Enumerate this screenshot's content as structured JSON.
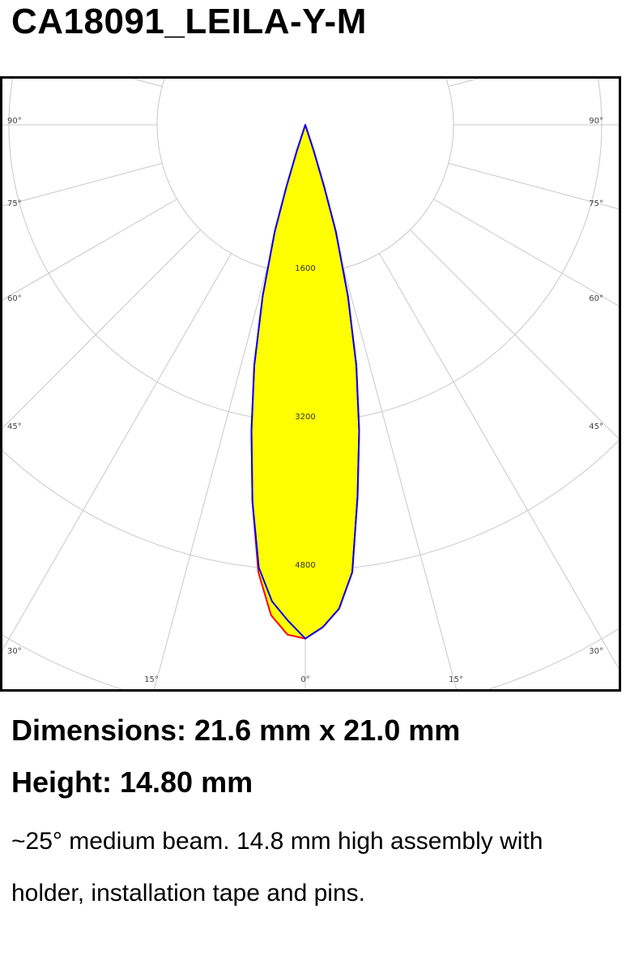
{
  "title": "CA18091_LEILA-Y-M",
  "chart_data": {
    "type": "polar",
    "title": "",
    "rings": [
      1600,
      3200,
      4800,
      6400
    ],
    "ring_labels": [
      "1600",
      "3200",
      "4800"
    ],
    "angle_labels_left": [
      "90°",
      "75°",
      "60°",
      "45°",
      "30°"
    ],
    "angle_labels_right": [
      "90°",
      "75°",
      "60°",
      "45°",
      "30°"
    ],
    "angle_labels_bottom": [
      "15°",
      "0°",
      "15°"
    ],
    "grid": true,
    "fill_color": "#ffff00",
    "series": [
      {
        "color": "#ff0000",
        "angles": [
          -20,
          -18,
          -17,
          -16,
          -14,
          -12,
          -10,
          -8,
          -6,
          -4,
          -2,
          0,
          2,
          4,
          6,
          8,
          10,
          12,
          14,
          16,
          17,
          18,
          20
        ],
        "values": [
          0,
          300,
          700,
          1200,
          1900,
          2650,
          3350,
          4100,
          4850,
          5300,
          5500,
          5540,
          5420,
          5230,
          4850,
          4050,
          3350,
          2650,
          1900,
          1200,
          700,
          300,
          0
        ]
      },
      {
        "color": "#0000ff",
        "angles": [
          -20,
          -18,
          -17,
          -16,
          -14,
          -12,
          -10,
          -8,
          -6,
          -4,
          -2,
          0,
          2,
          4,
          6,
          8,
          10,
          12,
          14,
          16,
          17,
          18,
          20
        ],
        "values": [
          0,
          300,
          700,
          1200,
          1900,
          2650,
          3350,
          4100,
          4800,
          5150,
          5350,
          5540,
          5420,
          5230,
          4850,
          4050,
          3350,
          2650,
          1900,
          1200,
          700,
          300,
          0
        ]
      }
    ]
  },
  "specs": {
    "dimensions": "Dimensions: 21.6 mm x 21.0 mm",
    "height": "Height: 14.80 mm",
    "description": "~25° medium beam. 14.8 mm high assembly with holder, installation tape and pins."
  }
}
